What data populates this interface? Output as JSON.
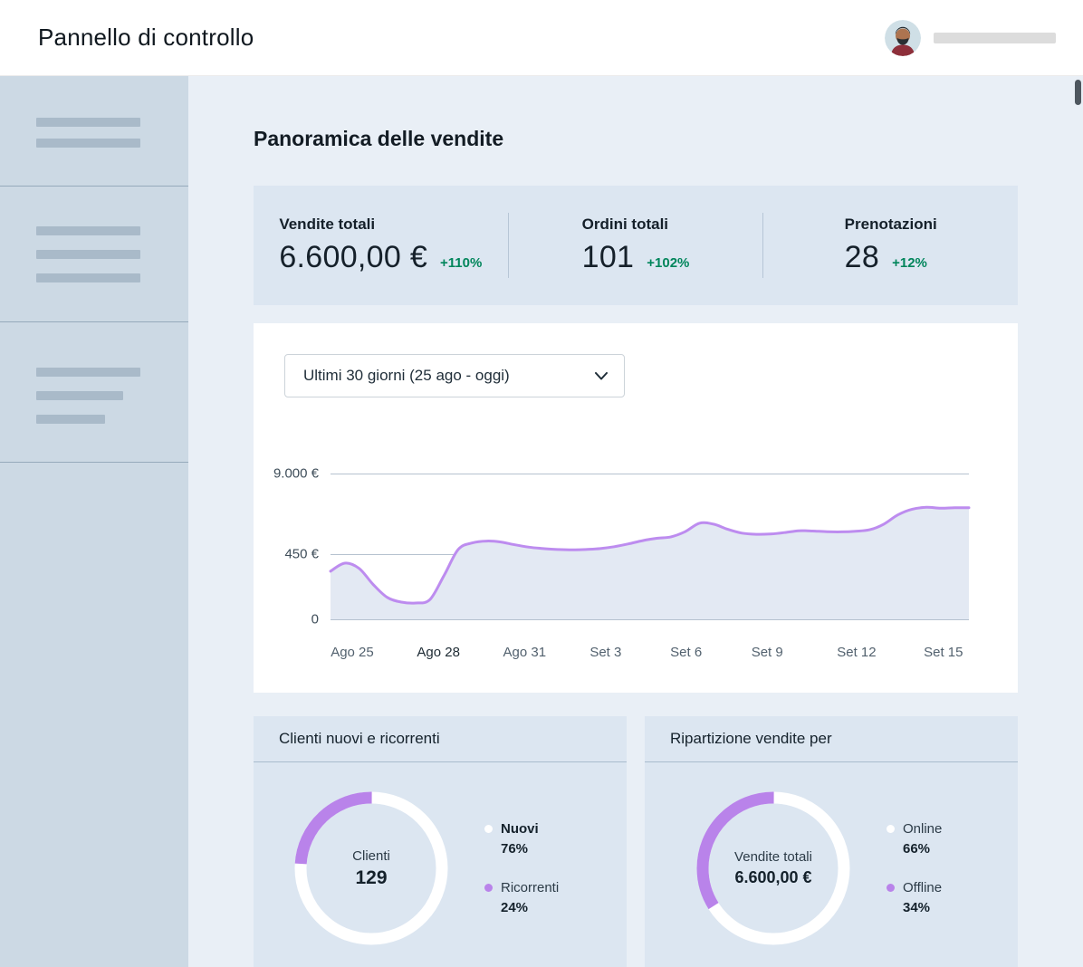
{
  "header": {
    "title": "Pannello di controllo"
  },
  "page": {
    "section_title": "Panoramica delle vendite"
  },
  "stats": [
    {
      "label": "Vendite totali",
      "value": "6.600,00 €",
      "change": "+110%"
    },
    {
      "label": "Ordini totali",
      "value": "101",
      "change": "+102%"
    },
    {
      "label": "Prenotazioni",
      "value": "28",
      "change": "+12%"
    }
  ],
  "date_filter": {
    "value": "Ultimi 30 giorni (25 ago - oggi)"
  },
  "colors": {
    "positive": "#00855b",
    "line_purple": "#bd8cef",
    "area_fill": "#e3e9f3",
    "donut_purple": "#b983ea",
    "donut_white": "#ffffff"
  },
  "chart_data": [
    {
      "type": "area",
      "series": [
        {
          "name": "Vendite",
          "values": [
            330,
            385,
            350,
            240,
            150,
            118,
            112,
            135,
            300,
            900,
            1600,
            1800,
            1700,
            1400,
            1150,
            1000,
            900,
            860,
            900,
            1000,
            1200,
            1500,
            1850,
            2100,
            2250,
            2800,
            3700,
            3600,
            3050,
            2650,
            2520,
            2550,
            2700,
            2900,
            2870,
            2800,
            2780,
            2850,
            3000,
            3600,
            4600,
            5200,
            5400,
            5300,
            5350,
            5350
          ]
        }
      ],
      "y_ticks": [
        {
          "label": "9.000 €",
          "value": 9000
        },
        {
          "label": "450 €",
          "value": 450
        },
        {
          "label": "0",
          "value": 0
        }
      ],
      "y_axis_nonlinear": true,
      "x_labels": [
        {
          "label": "Ago 25",
          "pos": 0.034
        },
        {
          "label": "Ago 28",
          "pos": 0.169,
          "emphasis": true
        },
        {
          "label": "Ago 31",
          "pos": 0.304
        },
        {
          "label": "Set 3",
          "pos": 0.431
        },
        {
          "label": "Set 6",
          "pos": 0.557
        },
        {
          "label": "Set 9",
          "pos": 0.684
        },
        {
          "label": "Set 12",
          "pos": 0.824
        },
        {
          "label": "Set 15",
          "pos": 0.96
        }
      ],
      "line_color": "#bd8cef",
      "fill_color": "#e3e9f3"
    },
    {
      "type": "pie",
      "title": "Clienti nuovi e ricorrenti",
      "center_label": "Clienti",
      "center_value": "129",
      "slices": [
        {
          "label": "Nuovi",
          "value": 76,
          "pct": "76%",
          "color": "#ffffff"
        },
        {
          "label": "Ricorrenti",
          "value": 24,
          "pct": "24%",
          "color": "#b983ea"
        }
      ]
    },
    {
      "type": "pie",
      "title": "Ripartizione vendite per",
      "center_label": "Vendite totali",
      "center_value": "6.600,00 €",
      "slices": [
        {
          "label": "Online",
          "value": 66,
          "pct": "66%",
          "color": "#ffffff"
        },
        {
          "label": "Offline",
          "value": 34,
          "pct": "34%",
          "color": "#b983ea"
        }
      ]
    }
  ]
}
